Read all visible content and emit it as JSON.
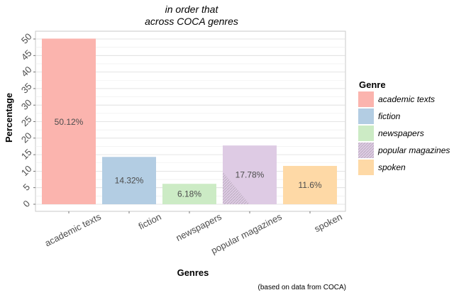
{
  "chart_data": {
    "type": "bar",
    "title_lines": [
      "in order that",
      "across COCA genres"
    ],
    "xlabel": "Genres",
    "ylabel": "Percentage",
    "caption": "(based on data from COCA)",
    "categories": [
      "academic texts",
      "fiction",
      "newspapers",
      "popular magazines",
      "spoken"
    ],
    "values": [
      50.12,
      14.32,
      6.18,
      17.78,
      11.6
    ],
    "data_labels": [
      "50.12%",
      "14.32%",
      "6.18%",
      "17.78%",
      "11.6%"
    ],
    "colors": [
      "#fbb4ae",
      "#b3cde3",
      "#ccebc5",
      "#decbe4",
      "#fed9a6"
    ],
    "ylim": [
      0,
      52
    ],
    "yticks": [
      0,
      5,
      10,
      15,
      20,
      25,
      30,
      35,
      40,
      45,
      50
    ],
    "grid": true,
    "legend": {
      "title": "Genre",
      "position": "right",
      "entries": [
        "academic texts",
        "fiction",
        "newspapers",
        "popular magazines",
        "spoken"
      ]
    }
  }
}
